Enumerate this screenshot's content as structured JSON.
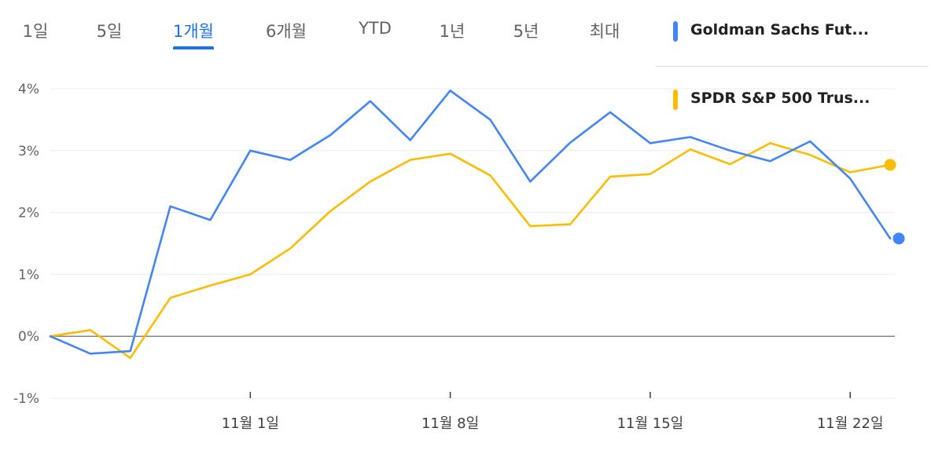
{
  "tabs": [
    {
      "label": "1일",
      "active": false
    },
    {
      "label": "5일",
      "active": false
    },
    {
      "label": "1개월",
      "active": true
    },
    {
      "label": "6개월",
      "active": false
    },
    {
      "label": "YTD",
      "active": false
    },
    {
      "label": "1년",
      "active": false
    },
    {
      "label": "5년",
      "active": false
    },
    {
      "label": "최대",
      "active": false
    }
  ],
  "legend": [
    {
      "label": "Goldman Sachs Fut...",
      "color": "#4285f4"
    },
    {
      "label": "SPDR S&P 500 Trus...",
      "color": "#fbbc04"
    }
  ],
  "chart_data": {
    "type": "line",
    "x_tick_labels": [
      "11월 1일",
      "11월 8일",
      "11월 15일",
      "11월 22일"
    ],
    "y_tick_labels": [
      "4%",
      "3%",
      "2%",
      "1%",
      "0%",
      "-1%"
    ],
    "ylim": [
      -1,
      4
    ],
    "grid": true,
    "series": [
      {
        "name": "Goldman Sachs Fut...",
        "color": "#4285f4",
        "values": [
          0,
          -0.28,
          -0.24,
          2.1,
          1.88,
          3.0,
          2.85,
          3.25,
          3.8,
          3.17,
          3.97,
          3.5,
          2.5,
          3.13,
          3.62,
          3.12,
          3.22,
          3.0,
          2.83,
          3.15,
          2.55,
          1.58
        ]
      },
      {
        "name": "SPDR S&P 500 Trus...",
        "color": "#fbbc04",
        "values": [
          0,
          0.1,
          -0.35,
          0.62,
          0.82,
          1.0,
          1.42,
          2.02,
          2.5,
          2.85,
          2.95,
          2.6,
          1.78,
          1.81,
          2.58,
          2.62,
          3.02,
          2.78,
          3.12,
          2.93,
          2.65,
          2.77
        ]
      }
    ]
  }
}
